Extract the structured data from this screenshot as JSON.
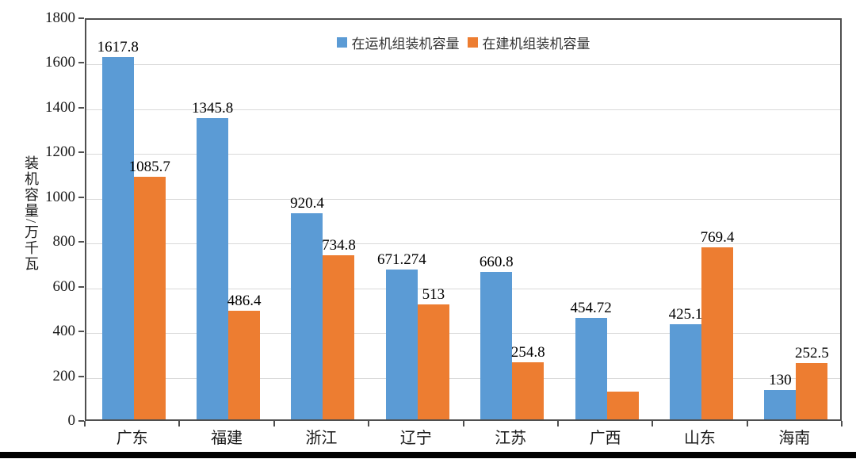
{
  "chart_data": {
    "type": "bar",
    "title": "",
    "categories": [
      "广东",
      "福建",
      "浙江",
      "辽宁",
      "江苏",
      "广西",
      "山东",
      "海南"
    ],
    "series": [
      {
        "name": "在运机组装机容量",
        "color": "#5B9BD5",
        "values": [
          1617.8,
          1345.8,
          920.4,
          671.274,
          660.8,
          454.72,
          425.1,
          130
        ],
        "labels": [
          "1617.8",
          "1345.8",
          "920.4",
          "671.274",
          "660.8",
          "454.72",
          "425.1",
          "130"
        ]
      },
      {
        "name": "在建机组装机容量",
        "color": "#ED7D31",
        "values": [
          1085.7,
          486.4,
          734.8,
          513,
          254.8,
          125,
          769.4,
          252.5
        ],
        "labels": [
          "1085.7",
          "486.4",
          "734.8",
          "513",
          "254.8",
          "",
          "769.4",
          "252.5"
        ]
      }
    ],
    "xlabel": "",
    "ylabel": "装机容量/万千瓦",
    "ylim": [
      0,
      1800
    ],
    "ytick_step": 200,
    "grid": true,
    "legend_position": "top-center"
  },
  "colors": {
    "gridline": "#D9D9D9",
    "axis_border": "#4F4F4F",
    "bottom_bar": "#000000",
    "background": "#FFFFFF"
  }
}
